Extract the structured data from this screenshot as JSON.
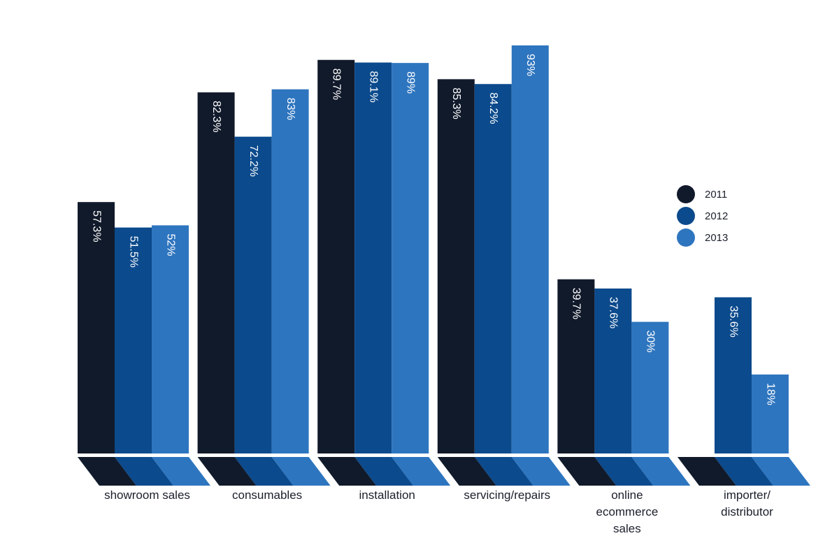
{
  "chart_data": {
    "type": "bar",
    "title": "",
    "xlabel": "",
    "ylabel": "",
    "categories": [
      "showroom sales",
      "consumables",
      "installation",
      "servicing/repairs",
      "online ecommerce sales",
      "importer/ distributor"
    ],
    "category_label_lines": [
      [
        "showroom sales"
      ],
      [
        "consumables"
      ],
      [
        "installation"
      ],
      [
        "servicing/repairs"
      ],
      [
        "online",
        "ecommerce",
        "sales"
      ],
      [
        "importer/",
        "distributor"
      ]
    ],
    "series": [
      {
        "name": "2011",
        "color": "#111a2b",
        "values": [
          57.3,
          82.3,
          89.7,
          85.3,
          39.7,
          null
        ],
        "labels": [
          "57.3%",
          "82.3%",
          "89.7%",
          "85.3%",
          "39.7%",
          ""
        ]
      },
      {
        "name": "2012",
        "color": "#0b4a8c",
        "values": [
          51.5,
          72.2,
          89.1,
          84.2,
          37.6,
          35.6
        ],
        "labels": [
          "51.5%",
          "72.2%",
          "89.1%",
          "84.2%",
          "37.6%",
          "35.6%"
        ]
      },
      {
        "name": "2013",
        "color": "#2e75bf",
        "values": [
          52,
          83,
          89,
          93,
          30,
          18
        ],
        "labels": [
          "52%",
          "83%",
          "89%",
          "93%",
          "30%",
          "18%"
        ]
      }
    ],
    "ylim": [
      0,
      93
    ],
    "legend_position": "right",
    "grid": false,
    "value_label_orientation": "vertical"
  }
}
